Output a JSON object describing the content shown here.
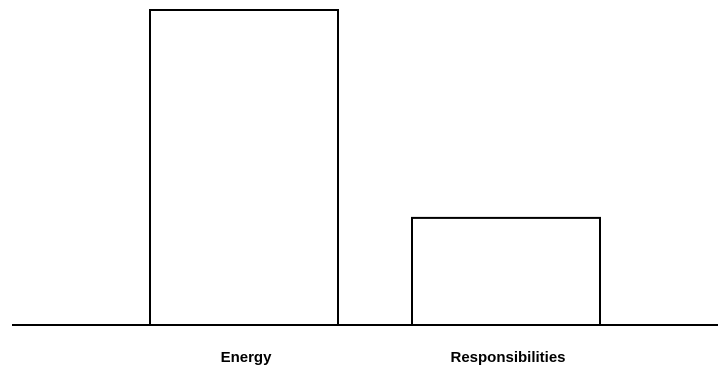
{
  "chart_data": {
    "type": "bar",
    "categories": [
      "Energy",
      "Responsibilities"
    ],
    "values": [
      100,
      34
    ],
    "title": "",
    "xlabel": "",
    "ylabel": "",
    "ylim": [
      0,
      100
    ],
    "grid": false,
    "bar_fill": "#ffffff",
    "bar_stroke": "#000000"
  }
}
